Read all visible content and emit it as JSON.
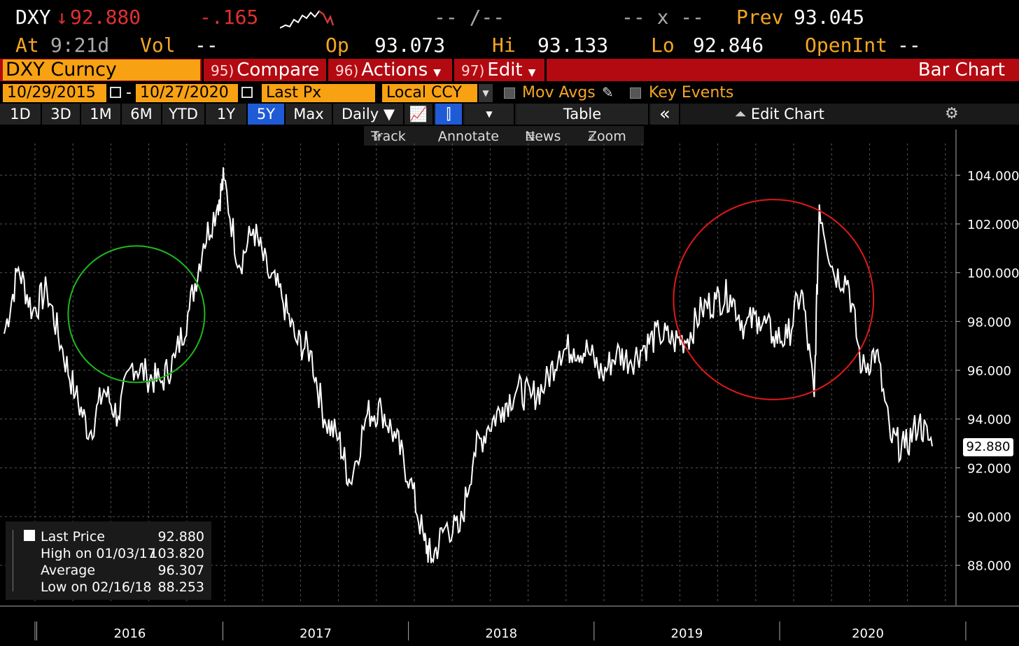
{
  "quote": {
    "ticker": "DXY",
    "arrow": "↓",
    "last": "92.880",
    "change": "-.165",
    "bid_ask": "-- /--",
    "size": "-- x --",
    "prev_label": "Prev",
    "prev": "93.045",
    "at_label": "At",
    "time": "9:21d",
    "vol_label": "Vol",
    "vol": "--",
    "open_label": "Op",
    "open": "93.073",
    "hi_label": "Hi",
    "hi": "93.133",
    "lo_label": "Lo",
    "lo": "92.846",
    "oi_label": "OpenInt",
    "oi": "--"
  },
  "function_bar": {
    "security": "DXY Curncy",
    "compare_num": "95)",
    "compare": "Compare",
    "actions_num": "96)",
    "actions": "Actions",
    "edit_num": "97)",
    "edit": "Edit",
    "chart_type": "Bar Chart"
  },
  "range": {
    "start": "10/29/2015",
    "dash": "-",
    "end": "10/27/2020",
    "field": "Last Px",
    "currency": "Local CCY",
    "mov_avgs": "Mov Avgs",
    "key_events": "Key Events"
  },
  "periods": [
    "1D",
    "3D",
    "1M",
    "6M",
    "YTD",
    "1Y",
    "5Y",
    "Max"
  ],
  "selected_period": "5Y",
  "frequency": "Daily ▼",
  "table_label": "Table",
  "collapse_label": "«",
  "edit_chart": "Edit Chart",
  "toolbar": {
    "track": "Track",
    "annotate": "Annotate",
    "news": "News",
    "zoom": "Zoom"
  },
  "legend": {
    "last_label": "Last Price",
    "last_value": "92.880",
    "high_label": "High on 01/03/17",
    "high_value": "103.820",
    "avg_label": "Average",
    "avg_value": "96.307",
    "low_label": "Low on 02/16/18",
    "low_value": "88.253"
  },
  "colors": {
    "accent": "#f7a113",
    "bar_red": "#b30a12",
    "price_line": "#ffffff",
    "green_circle": "#1fb81f",
    "red_circle": "#e01818"
  },
  "chart_data": {
    "type": "line",
    "ylim": [
      86.5,
      105.3
    ],
    "yticks": [
      "88.000",
      "90.000",
      "92.000",
      "94.000",
      "96.000",
      "98.000",
      "100.000",
      "102.000",
      "104.000"
    ],
    "xticks": [
      "2016",
      "2017",
      "2018",
      "2019",
      "2020"
    ],
    "x": [
      "2015-10-29",
      "2015-11-26",
      "2015-12-24",
      "2016-01-21",
      "2016-02-18",
      "2016-03-17",
      "2016-04-14",
      "2016-05-12",
      "2016-06-09",
      "2016-07-07",
      "2016-08-04",
      "2016-09-01",
      "2016-09-29",
      "2016-10-27",
      "2016-11-24",
      "2016-12-22",
      "2017-01-03",
      "2017-02-02",
      "2017-03-02",
      "2017-03-30",
      "2017-04-27",
      "2017-05-25",
      "2017-06-22",
      "2017-07-20",
      "2017-08-17",
      "2017-09-08",
      "2017-10-12",
      "2017-11-09",
      "2017-12-07",
      "2018-01-04",
      "2018-02-01",
      "2018-02-16",
      "2018-03-15",
      "2018-04-12",
      "2018-05-10",
      "2018-06-07",
      "2018-07-05",
      "2018-08-02",
      "2018-08-30",
      "2018-09-27",
      "2018-10-25",
      "2018-11-22",
      "2018-12-20",
      "2019-01-17",
      "2019-02-14",
      "2019-03-14",
      "2019-04-11",
      "2019-05-09",
      "2019-06-06",
      "2019-07-04",
      "2019-08-01",
      "2019-08-29",
      "2019-09-26",
      "2019-10-24",
      "2019-11-21",
      "2019-12-19",
      "2020-01-16",
      "2020-02-13",
      "2020-03-09",
      "2020-03-19",
      "2020-04-16",
      "2020-05-14",
      "2020-06-11",
      "2020-07-09",
      "2020-08-06",
      "2020-09-03",
      "2020-10-01",
      "2020-10-27"
    ],
    "values": [
      97.5,
      100.2,
      98.4,
      99.3,
      97.0,
      95.0,
      93.4,
      95.2,
      94.1,
      96.3,
      95.8,
      95.5,
      96.5,
      98.5,
      101.2,
      102.8,
      103.82,
      100.3,
      101.8,
      100.0,
      99.0,
      97.2,
      96.8,
      94.0,
      93.2,
      91.4,
      94.2,
      94.4,
      93.2,
      91.5,
      89.0,
      88.25,
      89.6,
      89.4,
      92.6,
      93.7,
      94.5,
      95.2,
      94.9,
      95.4,
      96.8,
      96.9,
      96.8,
      95.8,
      96.7,
      96.4,
      97.0,
      97.5,
      97.2,
      97.3,
      98.5,
      98.9,
      99.1,
      97.8,
      98.2,
      97.4,
      97.3,
      99.3,
      94.9,
      102.8,
      100.0,
      99.7,
      96.0,
      96.8,
      93.2,
      92.8,
      93.9,
      92.88
    ],
    "series": [
      {
        "name": "Last Price"
      }
    ],
    "annotations": [
      {
        "type": "circle",
        "color": "green",
        "center_x": "2016-07-15",
        "center_y": 98.3,
        "radius_y": 2.8
      },
      {
        "type": "circle",
        "color": "red",
        "center_x": "2019-12-20",
        "center_y": 98.9,
        "radius_y": 4.1
      }
    ]
  }
}
